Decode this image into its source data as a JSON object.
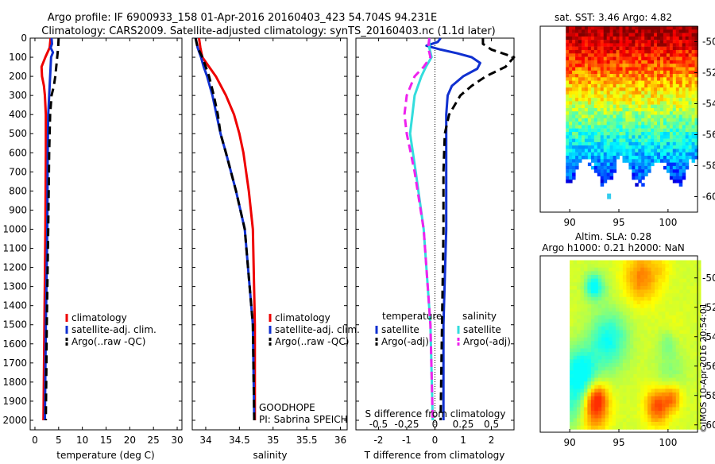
{
  "header": {
    "line1": "Argo profile: IF 6900933_158 01-Apr-2016 20160403_423 54.704S 94.231E",
    "line2": "Climatology: CARS2009. Satellite-adjusted climatology: synTS_20160403.nc (1.1d later)"
  },
  "watermark": "©IMOS 10-Apr-2016 20:54:01",
  "chart_data": [
    {
      "id": "temperature",
      "type": "line",
      "xlabel": "temperature (deg C)",
      "ylabel": "",
      "xlim": [
        -1,
        31
      ],
      "ylim": [
        2050,
        0
      ],
      "xticks": [
        0,
        5,
        10,
        15,
        20,
        25,
        30
      ],
      "yticks": [
        0,
        100,
        200,
        300,
        400,
        500,
        600,
        700,
        800,
        900,
        1000,
        1100,
        1200,
        1300,
        1400,
        1500,
        1600,
        1700,
        1800,
        1900,
        2000
      ],
      "legend": [
        "climatology",
        "satellite-adj. clim.",
        "Argo(..raw -QC)"
      ],
      "series": [
        {
          "name": "climatology",
          "color": "#ee0000",
          "style": "solid",
          "depth": [
            0,
            50,
            100,
            150,
            200,
            250,
            300,
            400,
            600,
            1000,
            1500,
            2000
          ],
          "values": [
            3.3,
            3.1,
            2.2,
            1.4,
            1.5,
            1.9,
            2.1,
            2.3,
            2.3,
            2.2,
            2.0,
            1.8
          ]
        },
        {
          "name": "satellite-adj. clim.",
          "color": "#1030d0",
          "style": "solid",
          "depth": [
            0,
            30,
            50,
            75,
            100,
            150,
            200,
            300,
            400,
            600,
            1000,
            1500,
            2000
          ],
          "values": [
            3.5,
            3.6,
            3.3,
            3.8,
            3.4,
            3.3,
            3.2,
            3.0,
            2.8,
            2.7,
            2.6,
            2.3,
            2.1
          ]
        },
        {
          "name": "Argo(..raw -QC)",
          "color": "#000000",
          "style": "dash",
          "depth": [
            0,
            50,
            100,
            150,
            200,
            250,
            300,
            400,
            600,
            1000,
            1500,
            2000
          ],
          "values": [
            5.0,
            4.9,
            4.7,
            4.5,
            4.3,
            4.0,
            3.5,
            3.2,
            3.0,
            2.8,
            2.5,
            2.3
          ]
        }
      ]
    },
    {
      "id": "salinity",
      "type": "line",
      "xlabel": "salinity",
      "xlim": [
        33.8,
        36.1
      ],
      "ylim": [
        2050,
        0
      ],
      "xticks": [
        34,
        34.5,
        35,
        35.5,
        36
      ],
      "legend": [
        "climatology",
        "satellite-adj. clim.",
        "Argo(..raw -QC)"
      ],
      "annotation": [
        "GOODHOPE",
        "PI: Sabrina SPEICH"
      ],
      "series": [
        {
          "name": "climatology",
          "color": "#ee0000",
          "style": "solid",
          "depth": [
            0,
            50,
            100,
            150,
            200,
            300,
            400,
            500,
            600,
            800,
            1000,
            1500,
            2000
          ],
          "values": [
            33.9,
            33.92,
            33.95,
            34.05,
            34.15,
            34.3,
            34.42,
            34.5,
            34.56,
            34.64,
            34.7,
            34.73,
            34.73
          ]
        },
        {
          "name": "satellite-adj. clim.",
          "color": "#1030d0",
          "style": "solid",
          "depth": [
            0,
            50,
            100,
            150,
            200,
            300,
            400,
            500,
            600,
            800,
            1000,
            1500,
            2000
          ],
          "values": [
            33.85,
            33.88,
            33.93,
            33.97,
            34.02,
            34.1,
            34.16,
            34.22,
            34.3,
            34.45,
            34.58,
            34.7,
            34.72
          ]
        },
        {
          "name": "Argo(..raw -QC)",
          "color": "#000000",
          "style": "dash",
          "depth": [
            0,
            50,
            100,
            150,
            200,
            300,
            400,
            500,
            600,
            800,
            1000,
            1500,
            2000
          ],
          "values": [
            33.85,
            33.88,
            33.95,
            34.0,
            34.05,
            34.12,
            34.18,
            34.22,
            34.3,
            34.45,
            34.58,
            34.7,
            34.72
          ]
        }
      ]
    },
    {
      "id": "difference",
      "type": "line",
      "xlabel": "T difference from climatology",
      "xlabel_top": "S difference from climatology",
      "xlim": [
        -2.8,
        2.8
      ],
      "ylim": [
        2050,
        0
      ],
      "xticks": [
        -2,
        -1,
        0,
        1,
        2
      ],
      "xticks_top": [
        -0.5,
        -0.25,
        0,
        0.25,
        0.5
      ],
      "legend_left_title": "temperature",
      "legend_right_title": "salinity",
      "legend": [
        "satellite",
        "Argo(-adj)",
        "satellite",
        "Argo(-adj)"
      ],
      "series": [
        {
          "name": "temperature satellite",
          "color": "#1030d0",
          "style": "solid",
          "depth": [
            0,
            20,
            40,
            60,
            80,
            100,
            130,
            160,
            200,
            250,
            300,
            400,
            500,
            700,
            1000,
            1500,
            2000
          ],
          "values": [
            0.2,
            0.1,
            -0.3,
            0.2,
            0.8,
            1.3,
            1.6,
            1.5,
            1.0,
            0.6,
            0.45,
            0.4,
            0.4,
            0.4,
            0.4,
            0.3,
            0.3
          ]
        },
        {
          "name": "temperature Argo(-adj)",
          "color": "#000000",
          "style": "dash",
          "depth": [
            0,
            30,
            60,
            100,
            150,
            200,
            250,
            300,
            400,
            500,
            700,
            1000,
            1500,
            2000
          ],
          "values": [
            1.7,
            1.7,
            2.0,
            2.8,
            2.5,
            1.8,
            1.3,
            0.9,
            0.5,
            0.35,
            0.3,
            0.3,
            0.25,
            0.2
          ]
        },
        {
          "name": "salinity satellite",
          "color": "#33dddd",
          "style": "solid",
          "depth": [
            0,
            50,
            100,
            150,
            200,
            300,
            400,
            500,
            700,
            1000,
            1500,
            2000
          ],
          "values": [
            -0.05,
            -0.05,
            -0.03,
            -0.08,
            -0.12,
            -0.18,
            -0.2,
            -0.22,
            -0.17,
            -0.1,
            -0.04,
            -0.02
          ]
        },
        {
          "name": "salinity Argo(-adj)",
          "color": "#ee22ee",
          "style": "dash",
          "depth": [
            0,
            50,
            100,
            150,
            200,
            300,
            400,
            500,
            700,
            1000,
            1500,
            2000
          ],
          "values": [
            -0.05,
            -0.06,
            -0.04,
            -0.1,
            -0.18,
            -0.25,
            -0.27,
            -0.25,
            -0.18,
            -0.1,
            -0.04,
            -0.02
          ]
        }
      ]
    },
    {
      "id": "sst-map",
      "type": "heatmap",
      "title": "sat. SST: 3.46 Argo: 4.82",
      "xticks": [
        90,
        95,
        100
      ],
      "yticks": [
        -50,
        -52,
        -54,
        -56,
        -58,
        -60
      ],
      "xlim": [
        87,
        103
      ],
      "ylim": [
        -61,
        -49
      ]
    },
    {
      "id": "sla-map",
      "type": "heatmap",
      "title_line1": "Altim. SLA: 0.28",
      "title_line2": "Argo h1000: 0.21 h2000: NaN",
      "xticks": [
        90,
        95,
        100
      ],
      "yticks": [
        -50,
        -52,
        -54,
        -56,
        -58,
        -60
      ],
      "xlim": [
        87,
        103
      ],
      "ylim": [
        -60.5,
        -48.5
      ]
    }
  ]
}
